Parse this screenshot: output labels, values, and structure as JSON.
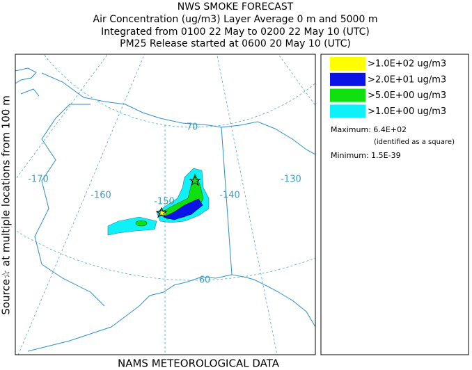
{
  "header": {
    "title": "NWS SMOKE FORECAST",
    "lines": [
      "Air Concentration (ug/m3) Layer Average    0 m and  5000 m",
      "Integrated from 0100 22 May to 0200 22 May 10 (UTC)",
      "PM25 Release started at 0600 20 May 10 (UTC)"
    ]
  },
  "side_label": "Source☆ at multiple locations from  100 m",
  "footer": "NAMS METEOROLOGICAL DATA",
  "legend": {
    "items": [
      {
        "label": ">1.0E+02 ug/m3",
        "color": "#ffff00"
      },
      {
        "label": ">2.0E+01 ug/m3",
        "color": "#0a14e6"
      },
      {
        "label": ">5.0E+00 ug/m3",
        "color": "#10e010"
      },
      {
        "label": ">1.0E+00 ug/m3",
        "color": "#10f0f8"
      }
    ],
    "maximum": "Maximum: 6.4E+02",
    "maximum_note": "(identified as a square)",
    "minimum": "Minimum: 1.5E-39"
  },
  "map": {
    "labels": [
      "-170",
      "-160",
      "-150",
      "-140",
      "-130",
      "70",
      "60"
    ]
  }
}
